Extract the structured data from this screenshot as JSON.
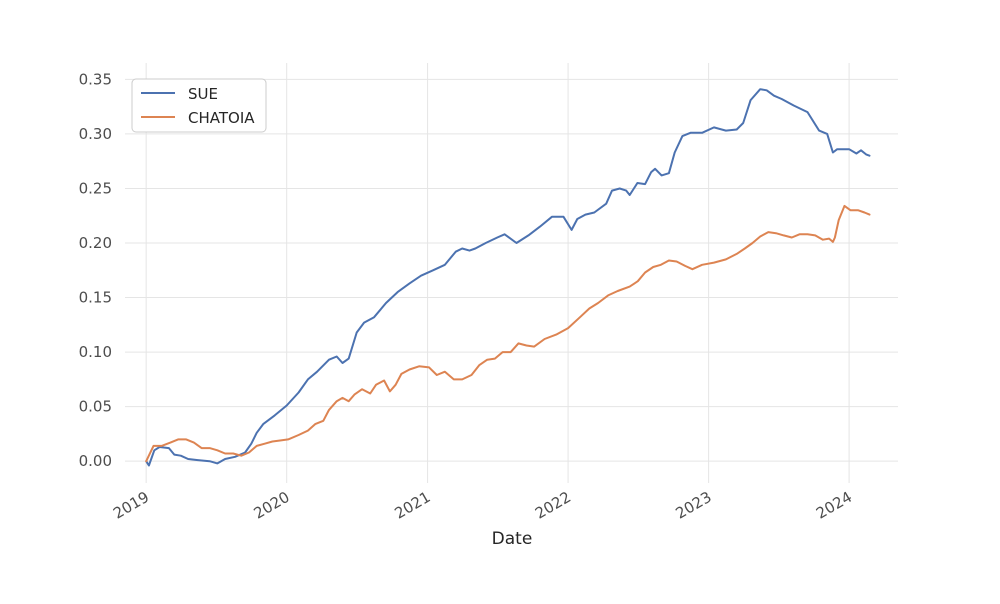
{
  "chart_data": {
    "type": "line",
    "title": "",
    "xlabel": "Date",
    "ylabel": "",
    "ylim": [
      -0.02,
      0.365
    ],
    "y_ticks": [
      "0.00",
      "0.05",
      "0.10",
      "0.15",
      "0.20",
      "0.25",
      "0.30",
      "0.35"
    ],
    "x_ticks": [
      "2019",
      "2020",
      "2021",
      "2022",
      "2023",
      "2024"
    ],
    "xlim": [
      "2018-11-07",
      "2024-05-07"
    ],
    "grid": true,
    "legend_position": "top-left",
    "series": [
      {
        "name": "SUE",
        "color": "#4c72b0",
        "x": [
          "2019-01-01",
          "2019-01-08",
          "2019-01-22",
          "2019-02-05",
          "2019-03-01",
          "2019-03-15",
          "2019-04-01",
          "2019-04-20",
          "2019-05-15",
          "2019-06-15",
          "2019-07-05",
          "2019-07-25",
          "2019-08-20",
          "2019-09-15",
          "2019-10-01",
          "2019-10-15",
          "2019-11-01",
          "2019-12-01",
          "2020-01-01",
          "2020-02-01",
          "2020-02-25",
          "2020-03-20",
          "2020-04-20",
          "2020-05-10",
          "2020-05-25",
          "2020-06-10",
          "2020-07-01",
          "2020-07-20",
          "2020-08-15",
          "2020-09-15",
          "2020-10-15",
          "2020-11-15",
          "2020-12-15",
          "2021-01-15",
          "2021-02-15",
          "2021-03-15",
          "2021-04-01",
          "2021-04-20",
          "2021-05-05",
          "2021-06-01",
          "2021-07-01",
          "2021-07-20",
          "2021-08-20",
          "2021-09-20",
          "2021-10-20",
          "2021-11-20",
          "2021-12-20",
          "2022-01-10",
          "2022-01-25",
          "2022-02-15",
          "2022-03-10",
          "2022-04-10",
          "2022-04-25",
          "2022-05-15",
          "2022-06-01",
          "2022-06-10",
          "2022-06-30",
          "2022-07-20",
          "2022-08-05",
          "2022-08-15",
          "2022-09-01",
          "2022-09-20",
          "2022-10-05",
          "2022-10-25",
          "2022-11-15",
          "2022-12-15",
          "2023-01-15",
          "2023-02-15",
          "2023-03-15",
          "2023-04-01",
          "2023-04-20",
          "2023-05-15",
          "2023-06-01",
          "2023-06-20",
          "2023-07-10",
          "2023-08-10",
          "2023-09-15",
          "2023-10-15",
          "2023-11-05",
          "2023-11-20",
          "2023-12-01",
          "2023-12-15",
          "2024-01-01",
          "2024-01-20",
          "2024-02-01",
          "2024-02-15",
          "2024-02-23"
        ],
        "y": [
          0.0,
          -0.004,
          0.01,
          0.013,
          0.012,
          0.006,
          0.005,
          0.002,
          0.001,
          0.0,
          -0.002,
          0.002,
          0.004,
          0.008,
          0.016,
          0.026,
          0.034,
          0.042,
          0.051,
          0.063,
          0.075,
          0.082,
          0.093,
          0.096,
          0.09,
          0.094,
          0.118,
          0.127,
          0.132,
          0.145,
          0.155,
          0.163,
          0.17,
          0.175,
          0.18,
          0.192,
          0.195,
          0.193,
          0.195,
          0.2,
          0.205,
          0.208,
          0.2,
          0.207,
          0.215,
          0.224,
          0.224,
          0.212,
          0.222,
          0.226,
          0.228,
          0.236,
          0.248,
          0.25,
          0.248,
          0.244,
          0.255,
          0.254,
          0.265,
          0.268,
          0.262,
          0.264,
          0.283,
          0.298,
          0.301,
          0.301,
          0.306,
          0.303,
          0.304,
          0.31,
          0.331,
          0.341,
          0.34,
          0.335,
          0.332,
          0.326,
          0.32,
          0.303,
          0.3,
          0.283,
          0.286,
          0.286,
          0.286,
          0.282,
          0.285,
          0.281,
          0.28
        ]
      },
      {
        "name": "CHATOIA",
        "color": "#dd8452",
        "x": [
          "2019-01-01",
          "2019-01-20",
          "2019-02-10",
          "2019-03-05",
          "2019-03-25",
          "2019-04-15",
          "2019-05-05",
          "2019-05-25",
          "2019-06-15",
          "2019-07-05",
          "2019-07-25",
          "2019-08-15",
          "2019-09-05",
          "2019-09-25",
          "2019-10-15",
          "2019-11-05",
          "2019-11-25",
          "2019-12-15",
          "2020-01-05",
          "2020-02-01",
          "2020-02-25",
          "2020-03-15",
          "2020-04-05",
          "2020-04-20",
          "2020-05-10",
          "2020-05-25",
          "2020-06-10",
          "2020-06-25",
          "2020-07-15",
          "2020-08-05",
          "2020-08-20",
          "2020-09-10",
          "2020-09-25",
          "2020-10-10",
          "2020-10-25",
          "2020-11-15",
          "2020-12-10",
          "2021-01-05",
          "2021-01-25",
          "2021-02-15",
          "2021-03-10",
          "2021-04-01",
          "2021-04-25",
          "2021-05-15",
          "2021-06-05",
          "2021-06-25",
          "2021-07-15",
          "2021-08-05",
          "2021-08-25",
          "2021-09-15",
          "2021-10-05",
          "2021-11-01",
          "2021-12-01",
          "2022-01-01",
          "2022-02-01",
          "2022-02-25",
          "2022-03-20",
          "2022-04-15",
          "2022-05-10",
          "2022-06-10",
          "2022-07-01",
          "2022-07-20",
          "2022-08-10",
          "2022-08-30",
          "2022-09-20",
          "2022-10-10",
          "2022-11-01",
          "2022-11-20",
          "2022-12-15",
          "2023-01-15",
          "2023-02-15",
          "2023-03-15",
          "2023-04-05",
          "2023-04-25",
          "2023-05-15",
          "2023-06-05",
          "2023-06-25",
          "2023-07-15",
          "2023-08-05",
          "2023-08-25",
          "2023-09-15",
          "2023-10-05",
          "2023-10-25",
          "2023-11-10",
          "2023-11-20",
          "2023-11-25",
          "2023-12-05",
          "2023-12-20",
          "2024-01-05",
          "2024-01-25",
          "2024-02-10",
          "2024-02-23"
        ],
        "y": [
          0.0,
          0.014,
          0.014,
          0.017,
          0.02,
          0.02,
          0.017,
          0.012,
          0.012,
          0.01,
          0.007,
          0.007,
          0.005,
          0.008,
          0.014,
          0.016,
          0.018,
          0.019,
          0.02,
          0.024,
          0.028,
          0.034,
          0.037,
          0.047,
          0.055,
          0.058,
          0.055,
          0.061,
          0.066,
          0.062,
          0.07,
          0.074,
          0.064,
          0.07,
          0.08,
          0.084,
          0.087,
          0.086,
          0.079,
          0.082,
          0.075,
          0.075,
          0.079,
          0.088,
          0.093,
          0.094,
          0.1,
          0.1,
          0.108,
          0.106,
          0.105,
          0.112,
          0.116,
          0.122,
          0.132,
          0.14,
          0.145,
          0.152,
          0.156,
          0.16,
          0.165,
          0.173,
          0.178,
          0.18,
          0.184,
          0.183,
          0.179,
          0.176,
          0.18,
          0.182,
          0.185,
          0.19,
          0.195,
          0.2,
          0.206,
          0.21,
          0.209,
          0.207,
          0.205,
          0.208,
          0.208,
          0.207,
          0.203,
          0.204,
          0.201,
          0.205,
          0.221,
          0.234,
          0.23,
          0.23,
          0.228,
          0.226
        ]
      }
    ]
  }
}
